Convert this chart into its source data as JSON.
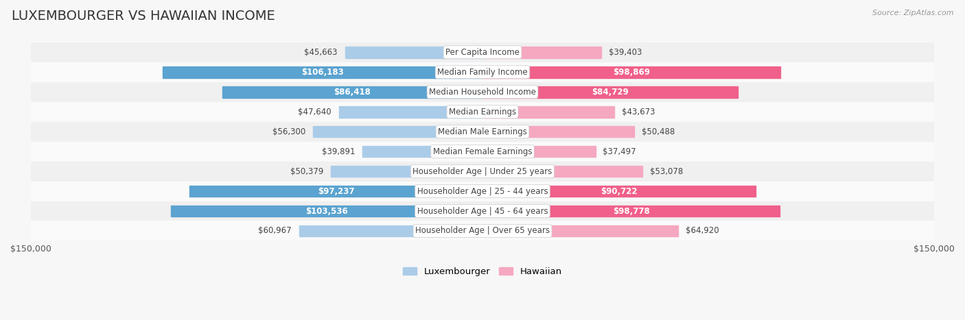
{
  "title": "LUXEMBOURGER VS HAWAIIAN INCOME",
  "source": "Source: ZipAtlas.com",
  "max_val": 150000,
  "categories": [
    "Per Capita Income",
    "Median Family Income",
    "Median Household Income",
    "Median Earnings",
    "Median Male Earnings",
    "Median Female Earnings",
    "Householder Age | Under 25 years",
    "Householder Age | 25 - 44 years",
    "Householder Age | 45 - 64 years",
    "Householder Age | Over 65 years"
  ],
  "luxembourger": [
    45663,
    106183,
    86418,
    47640,
    56300,
    39891,
    50379,
    97237,
    103536,
    60967
  ],
  "hawaiian": [
    39403,
    98869,
    84729,
    43673,
    50488,
    37497,
    53078,
    90722,
    98778,
    64920
  ],
  "lux_labels": [
    "$45,663",
    "$106,183",
    "$86,418",
    "$47,640",
    "$56,300",
    "$39,891",
    "$50,379",
    "$97,237",
    "$103,536",
    "$60,967"
  ],
  "haw_labels": [
    "$39,403",
    "$98,869",
    "$84,729",
    "$43,673",
    "$50,488",
    "$37,497",
    "$53,078",
    "$90,722",
    "$98,778",
    "$64,920"
  ],
  "lux_color_light": "#aacce8",
  "lux_color_dark": "#5ba3d0",
  "haw_color_light": "#f5a8c0",
  "haw_color_dark": "#f0608a",
  "row_bg_even": "#f0f0f0",
  "row_bg_odd": "#fafafa",
  "label_inside_threshold": 75000,
  "bar_height": 0.58,
  "title_fontsize": 14,
  "label_fontsize": 8.5,
  "cat_fontsize": 8.5,
  "source_fontsize": 8
}
